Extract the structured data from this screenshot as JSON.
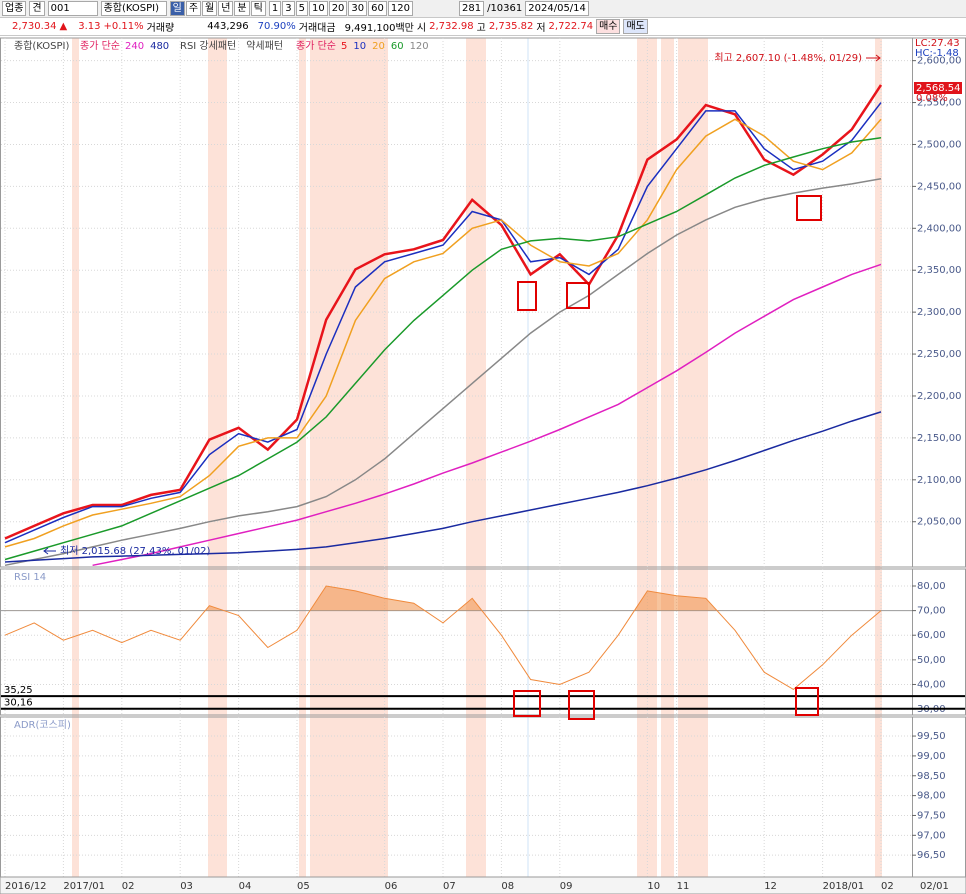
{
  "toolbar": {
    "market": "업종",
    "code_label": "견",
    "code": "001",
    "name": "종합(KOSPI)",
    "periods": [
      "일",
      "주",
      "월",
      "년",
      "분",
      "틱"
    ],
    "intervals": [
      "1",
      "3",
      "5",
      "10",
      "20",
      "30",
      "60",
      "120"
    ],
    "count": "281",
    "total": "/10361",
    "date": "2024/05/14"
  },
  "quote": {
    "price": "2,730.34",
    "arrow": "▲",
    "change": "3.13",
    "change_pct": "+0.11%",
    "volume_label": "거래량",
    "volume": "443,296",
    "volume_ratio": "70.90%",
    "amount_label": "거래대금",
    "amount": "9,491,100백만",
    "open_label": "시",
    "open": "2,732.98",
    "high_label": "고",
    "high": "2,735.82",
    "low_label": "저",
    "low": "2,722.74",
    "buy": "매수",
    "sell": "매도"
  },
  "chart_data": [
    {
      "type": "line",
      "title": "종합(KOSPI)",
      "ma_label": "종가 단순",
      "pattern_labels": [
        "RSI 강세패턴",
        "약세패턴"
      ],
      "categories": [
        "2016/12",
        null,
        "2017/01",
        null,
        "02",
        null,
        "03",
        null,
        "04",
        null,
        "05",
        null,
        null,
        "06",
        null,
        "07",
        null,
        "08",
        null,
        "09",
        null,
        null,
        "10",
        "11",
        null,
        null,
        "12",
        null,
        "2018/01",
        null,
        "02"
      ],
      "cursor_label": "02/01",
      "series": [
        {
          "name": "5",
          "color": "#e8141b",
          "values": [
            2030,
            2045,
            2060,
            2070,
            2070,
            2082,
            2088,
            2148,
            2162,
            2136,
            2172,
            2291,
            2351,
            2369,
            2375,
            2386,
            2434,
            2404,
            2345,
            2369,
            2333,
            2392,
            2482,
            2506,
            2547,
            2536,
            2482,
            2464,
            2488,
            2518,
            2571
          ]
        },
        {
          "name": "10",
          "color": "#1b2fbf",
          "values": [
            2025,
            2040,
            2055,
            2068,
            2068,
            2078,
            2085,
            2130,
            2155,
            2145,
            2160,
            2250,
            2330,
            2360,
            2370,
            2380,
            2420,
            2410,
            2360,
            2365,
            2345,
            2375,
            2450,
            2495,
            2540,
            2540,
            2495,
            2470,
            2480,
            2505,
            2550
          ]
        },
        {
          "name": "20",
          "color": "#f0a020",
          "values": [
            2020,
            2030,
            2045,
            2058,
            2065,
            2072,
            2080,
            2105,
            2140,
            2150,
            2150,
            2200,
            2290,
            2340,
            2360,
            2370,
            2400,
            2410,
            2380,
            2360,
            2355,
            2370,
            2410,
            2470,
            2510,
            2530,
            2510,
            2480,
            2470,
            2490,
            2530
          ]
        },
        {
          "name": "60",
          "color": "#1a9a2a",
          "values": [
            2005,
            2015,
            2025,
            2035,
            2045,
            2060,
            2075,
            2090,
            2105,
            2125,
            2145,
            2175,
            2215,
            2255,
            2290,
            2320,
            2350,
            2375,
            2385,
            2388,
            2385,
            2390,
            2405,
            2420,
            2440,
            2460,
            2475,
            2485,
            2495,
            2503,
            2508
          ]
        },
        {
          "name": "120",
          "color": "#888888",
          "values": [
            1998,
            2005,
            2012,
            2020,
            2028,
            2035,
            2042,
            2050,
            2057,
            2062,
            2068,
            2080,
            2100,
            2125,
            2155,
            2185,
            2215,
            2245,
            2275,
            2300,
            2320,
            2345,
            2370,
            2392,
            2410,
            2425,
            2435,
            2442,
            2448,
            2453,
            2459
          ]
        },
        {
          "name": "240",
          "color": "#e020c0",
          "values": [
            null,
            null,
            null,
            1998,
            2005,
            2012,
            2020,
            2028,
            2036,
            2044,
            2052,
            2062,
            2072,
            2083,
            2095,
            2108,
            2120,
            2133,
            2146,
            2160,
            2175,
            2190,
            2210,
            2230,
            2252,
            2275,
            2295,
            2315,
            2330,
            2345,
            2357
          ]
        },
        {
          "name": "480",
          "color": "#1a2aa0",
          "values": [
            2002,
            2004,
            2006,
            2008,
            2009,
            2010,
            2011,
            2012,
            2013,
            2015,
            2017,
            2020,
            2025,
            2030,
            2036,
            2042,
            2050,
            2057,
            2064,
            2071,
            2078,
            2085,
            2093,
            2102,
            2112,
            2123,
            2135,
            2147,
            2158,
            2170,
            2181
          ]
        }
      ],
      "ylim": [
        1996,
        2627
      ],
      "yticks": [
        {
          "value": 2050,
          "label": "2,050,00"
        },
        {
          "value": 2100,
          "label": "2,100,00"
        },
        {
          "value": 2150,
          "label": "2,150,00"
        },
        {
          "value": 2200,
          "label": "2,200,00"
        },
        {
          "value": 2250,
          "label": "2,250,00"
        },
        {
          "value": 2300,
          "label": "2,300,00"
        },
        {
          "value": 2350,
          "label": "2,350,00"
        },
        {
          "value": 2400,
          "label": "2,400,00"
        },
        {
          "value": 2450,
          "label": "2,450,00"
        },
        {
          "value": 2500,
          "label": "2,500,00"
        },
        {
          "value": 2550,
          "label": "2,550,00"
        },
        {
          "value": 2600,
          "label": "2,600,00"
        }
      ],
      "grid": true,
      "high_label": "최고 2,607.10 (-1.48%, 01/29)",
      "low_label": "최저 2,015.68 (27.43%, 01/02)",
      "lc": "LC:27.43",
      "hc": "HC:-1.48",
      "last": "2,568.54",
      "last_pct": "0.08%"
    },
    {
      "type": "line",
      "title": "RSI 14",
      "color": "#f08a3c",
      "values": [
        60,
        65,
        58,
        62,
        57,
        62,
        58,
        72,
        68,
        55,
        62,
        80,
        78,
        75,
        73,
        65,
        75,
        60,
        42,
        40,
        45,
        60,
        78,
        76,
        75,
        62,
        45,
        38,
        48,
        60,
        70
      ],
      "ylim": [
        27.6,
        86.9
      ],
      "yticks": [
        {
          "value": 30,
          "label": "30,00"
        },
        {
          "value": 40,
          "label": "40,00"
        },
        {
          "value": 50,
          "label": "50,00"
        },
        {
          "value": 60,
          "label": "60,00"
        },
        {
          "value": 70,
          "label": "70,00"
        },
        {
          "value": 80,
          "label": "80,00"
        }
      ],
      "levels": [
        {
          "value": 35.25,
          "label": "35,25"
        },
        {
          "value": 30.16,
          "label": "30,16"
        }
      ],
      "fill_above": 70
    },
    {
      "type": "line",
      "title": "ADR(코스피)",
      "ylim": [
        95.95,
        99.98
      ],
      "yticks": [
        {
          "value": 96.5,
          "label": "96,50"
        },
        {
          "value": 97,
          "label": "97,00"
        },
        {
          "value": 97.5,
          "label": "97,50"
        },
        {
          "value": 98,
          "label": "98,00"
        },
        {
          "value": 98.5,
          "label": "98,50"
        },
        {
          "value": 99,
          "label": "99,00"
        },
        {
          "value": 99.5,
          "label": "99,50"
        }
      ]
    }
  ]
}
